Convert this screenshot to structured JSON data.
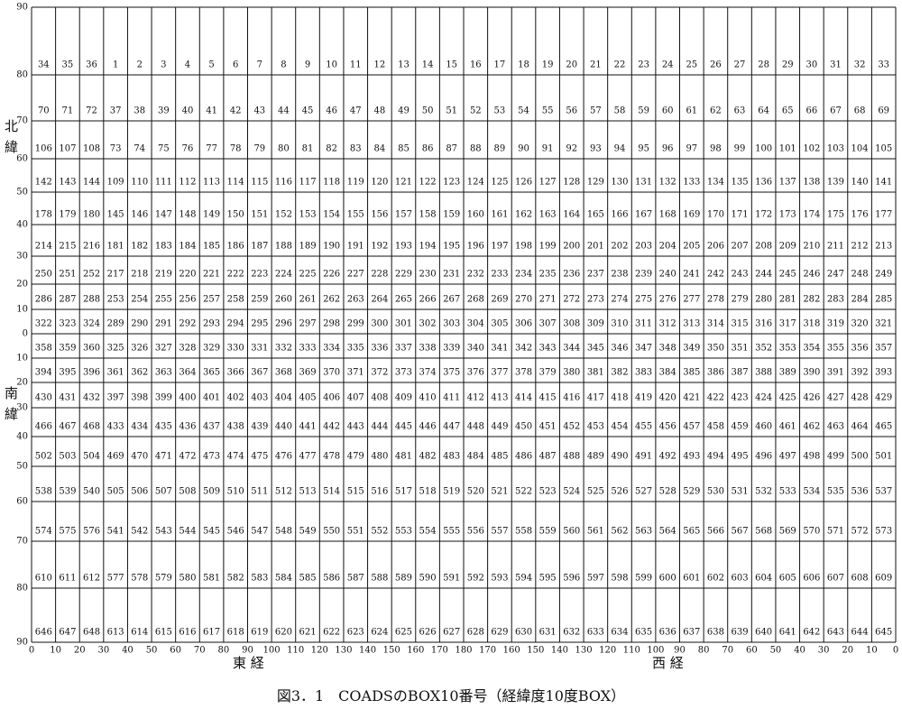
{
  "north_label": "北緯",
  "south_label": "南緯",
  "east_label": "東 経",
  "west_label": "西 経",
  "caption": "図3．1　COADSのBOX10番号（経緯度10度BOX）",
  "lat_ticks": [
    90,
    80,
    70,
    60,
    50,
    40,
    30,
    20,
    10,
    0,
    10,
    20,
    30,
    40,
    50,
    60,
    70,
    80,
    90
  ],
  "lon_ticks": [
    0,
    10,
    20,
    30,
    40,
    50,
    60,
    70,
    80,
    90,
    100,
    110,
    120,
    130,
    140,
    150,
    160,
    170,
    180,
    170,
    160,
    150,
    140,
    130,
    120,
    110,
    100,
    90,
    80,
    70,
    60,
    50,
    40,
    30,
    20,
    10,
    0
  ],
  "grid": [
    [
      34,
      35,
      36,
      1,
      2,
      3,
      4,
      5,
      6,
      7,
      8,
      9,
      10,
      11,
      12,
      13,
      14,
      15,
      16,
      17,
      18,
      19,
      20,
      21,
      22,
      23,
      24,
      25,
      26,
      27,
      28,
      29,
      30,
      31,
      32,
      33
    ],
    [
      70,
      71,
      72,
      37,
      38,
      39,
      40,
      41,
      42,
      43,
      44,
      45,
      46,
      47,
      48,
      49,
      50,
      51,
      52,
      53,
      54,
      55,
      56,
      57,
      58,
      59,
      60,
      61,
      62,
      63,
      64,
      65,
      66,
      67,
      68,
      69
    ],
    [
      106,
      107,
      108,
      73,
      74,
      75,
      76,
      77,
      78,
      79,
      80,
      81,
      82,
      83,
      84,
      85,
      86,
      87,
      88,
      89,
      90,
      91,
      92,
      93,
      94,
      95,
      96,
      97,
      98,
      99,
      100,
      101,
      102,
      103,
      104,
      105
    ],
    [
      142,
      143,
      144,
      109,
      110,
      111,
      112,
      113,
      114,
      115,
      116,
      117,
      118,
      119,
      120,
      121,
      122,
      123,
      124,
      125,
      126,
      127,
      128,
      129,
      130,
      131,
      132,
      133,
      134,
      135,
      136,
      137,
      138,
      139,
      140,
      141
    ],
    [
      178,
      179,
      180,
      145,
      146,
      147,
      148,
      149,
      150,
      151,
      152,
      153,
      154,
      155,
      156,
      157,
      158,
      159,
      160,
      161,
      162,
      163,
      164,
      165,
      166,
      167,
      168,
      169,
      170,
      171,
      172,
      173,
      174,
      175,
      176,
      177
    ],
    [
      214,
      215,
      216,
      181,
      182,
      183,
      184,
      185,
      186,
      187,
      188,
      189,
      190,
      191,
      192,
      193,
      194,
      195,
      196,
      197,
      198,
      199,
      200,
      201,
      202,
      203,
      204,
      205,
      206,
      207,
      208,
      209,
      210,
      211,
      212,
      213
    ],
    [
      250,
      251,
      252,
      217,
      218,
      219,
      220,
      221,
      222,
      223,
      224,
      225,
      226,
      227,
      228,
      229,
      230,
      231,
      232,
      233,
      234,
      235,
      236,
      237,
      238,
      239,
      240,
      241,
      242,
      243,
      244,
      245,
      246,
      247,
      248,
      249
    ],
    [
      286,
      287,
      288,
      253,
      254,
      255,
      256,
      257,
      258,
      259,
      260,
      261,
      262,
      263,
      264,
      265,
      266,
      267,
      268,
      269,
      270,
      271,
      272,
      273,
      274,
      275,
      276,
      277,
      278,
      279,
      280,
      281,
      282,
      283,
      284,
      285
    ],
    [
      322,
      323,
      324,
      289,
      290,
      291,
      292,
      293,
      294,
      295,
      296,
      297,
      298,
      299,
      300,
      301,
      302,
      303,
      304,
      305,
      306,
      307,
      308,
      309,
      310,
      311,
      312,
      313,
      314,
      315,
      316,
      317,
      318,
      319,
      320,
      321
    ],
    [
      358,
      359,
      360,
      325,
      326,
      327,
      328,
      329,
      330,
      331,
      332,
      333,
      334,
      335,
      336,
      337,
      338,
      339,
      340,
      341,
      342,
      343,
      344,
      345,
      346,
      347,
      348,
      349,
      350,
      351,
      352,
      353,
      354,
      355,
      356,
      357
    ],
    [
      394,
      395,
      396,
      361,
      362,
      363,
      364,
      365,
      366,
      367,
      368,
      369,
      370,
      371,
      372,
      373,
      374,
      375,
      376,
      377,
      378,
      379,
      380,
      381,
      382,
      383,
      384,
      385,
      386,
      387,
      388,
      389,
      390,
      391,
      392,
      393
    ],
    [
      430,
      431,
      432,
      397,
      398,
      399,
      400,
      401,
      402,
      403,
      404,
      405,
      406,
      407,
      408,
      409,
      410,
      411,
      412,
      413,
      414,
      415,
      416,
      417,
      418,
      419,
      420,
      421,
      422,
      423,
      424,
      425,
      426,
      427,
      428,
      429
    ],
    [
      466,
      467,
      468,
      433,
      434,
      435,
      436,
      437,
      438,
      439,
      440,
      441,
      442,
      443,
      444,
      445,
      446,
      447,
      448,
      449,
      450,
      451,
      452,
      453,
      454,
      455,
      456,
      457,
      458,
      459,
      460,
      461,
      462,
      463,
      464,
      465
    ],
    [
      502,
      503,
      504,
      469,
      470,
      471,
      472,
      473,
      474,
      475,
      476,
      477,
      478,
      479,
      480,
      481,
      482,
      483,
      484,
      485,
      486,
      487,
      488,
      489,
      490,
      491,
      492,
      493,
      494,
      495,
      496,
      497,
      498,
      499,
      500,
      501
    ],
    [
      538,
      539,
      540,
      505,
      506,
      507,
      508,
      509,
      510,
      511,
      512,
      513,
      514,
      515,
      516,
      517,
      518,
      519,
      520,
      521,
      522,
      523,
      524,
      525,
      526,
      527,
      528,
      529,
      530,
      531,
      532,
      533,
      534,
      535,
      536,
      537
    ],
    [
      574,
      575,
      576,
      541,
      542,
      543,
      544,
      545,
      546,
      547,
      548,
      549,
      550,
      551,
      552,
      553,
      554,
      555,
      556,
      557,
      558,
      559,
      560,
      561,
      562,
      563,
      564,
      565,
      566,
      567,
      568,
      569,
      570,
      571,
      572,
      573
    ],
    [
      610,
      611,
      612,
      577,
      578,
      579,
      580,
      581,
      582,
      583,
      584,
      585,
      586,
      587,
      588,
      589,
      590,
      591,
      592,
      593,
      594,
      595,
      596,
      597,
      598,
      599,
      600,
      601,
      602,
      603,
      604,
      605,
      606,
      607,
      608,
      609
    ],
    [
      646,
      647,
      648,
      613,
      614,
      615,
      616,
      617,
      618,
      619,
      620,
      621,
      622,
      623,
      624,
      625,
      626,
      627,
      628,
      629,
      630,
      631,
      632,
      633,
      634,
      635,
      636,
      637,
      638,
      639,
      640,
      641,
      642,
      643,
      644,
      645
    ]
  ]
}
